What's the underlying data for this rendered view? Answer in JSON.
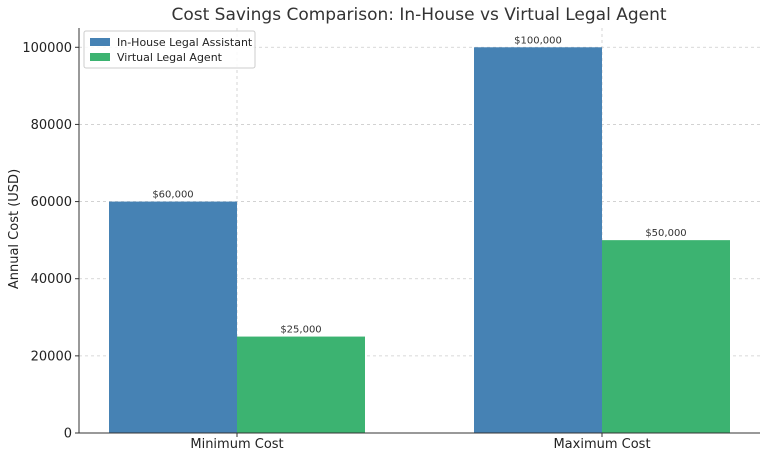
{
  "chart_data": {
    "type": "bar",
    "title": "Cost Savings Comparison: In-House vs Virtual Legal Agent",
    "xlabel": "",
    "ylabel": "Annual Cost (USD)",
    "categories": [
      "Minimum Cost",
      "Maximum Cost"
    ],
    "series": [
      {
        "name": "In-House Legal Assistant",
        "color": "#4682b4",
        "values": [
          60000,
          100000
        ],
        "labels": [
          "$60,000",
          "$100,000"
        ]
      },
      {
        "name": "Virtual Legal Agent",
        "color": "#3cb371",
        "values": [
          25000,
          50000
        ],
        "labels": [
          "$25,000",
          "$50,000"
        ]
      }
    ],
    "ylim": [
      0,
      105000
    ],
    "yticks": [
      0,
      20000,
      40000,
      60000,
      80000,
      100000
    ],
    "grid": true,
    "legend_position": "top-left"
  }
}
